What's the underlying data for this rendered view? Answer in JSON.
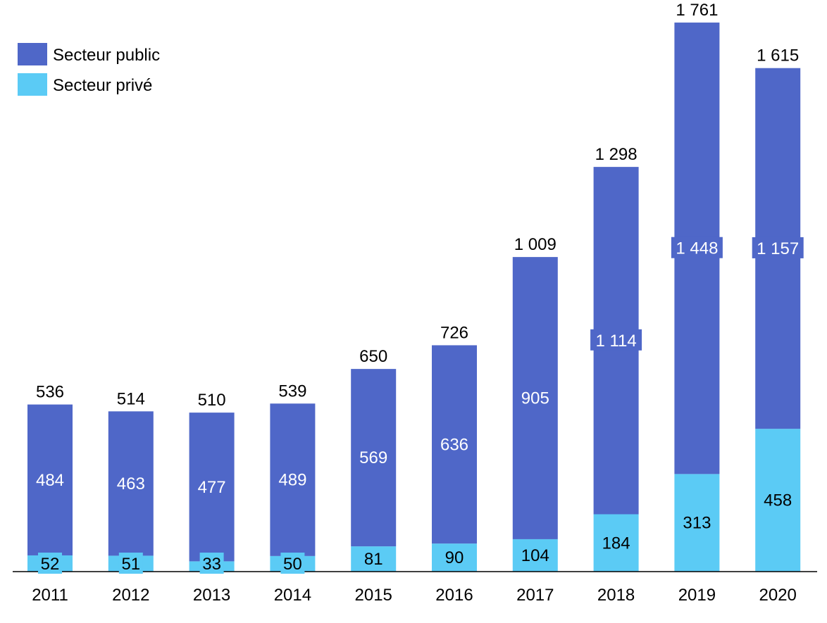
{
  "chart_data": {
    "type": "bar",
    "stacked": true,
    "categories": [
      "2011",
      "2012",
      "2013",
      "2014",
      "2015",
      "2016",
      "2017",
      "2018",
      "2019",
      "2020"
    ],
    "series": [
      {
        "name": "Secteur privé",
        "color": "#5BCBF5",
        "values": [
          52,
          51,
          33,
          50,
          81,
          90,
          104,
          184,
          313,
          458
        ],
        "labels": [
          "52",
          "51",
          "33",
          "50",
          "81",
          "90",
          "104",
          "184",
          "313",
          "458"
        ]
      },
      {
        "name": "Secteur public",
        "color": "#4F67C8",
        "values": [
          484,
          463,
          477,
          489,
          569,
          636,
          905,
          1114,
          1448,
          1157
        ],
        "labels": [
          "484",
          "463",
          "477",
          "489",
          "569",
          "636",
          "905",
          "1 114",
          "1 448",
          "1 157"
        ]
      }
    ],
    "totals": [
      536,
      514,
      510,
      539,
      650,
      726,
      1009,
      1298,
      1761,
      1615
    ],
    "total_labels": [
      "536",
      "514",
      "510",
      "539",
      "650",
      "726",
      "1 009",
      "1 298",
      "1 761",
      "1 615"
    ],
    "title": "",
    "xlabel": "",
    "ylabel": "",
    "ylim": [
      0,
      1761
    ],
    "grid": false,
    "legend_position": "top-left"
  },
  "legend": {
    "public_label": "Secteur public",
    "private_label": "Secteur privé"
  }
}
